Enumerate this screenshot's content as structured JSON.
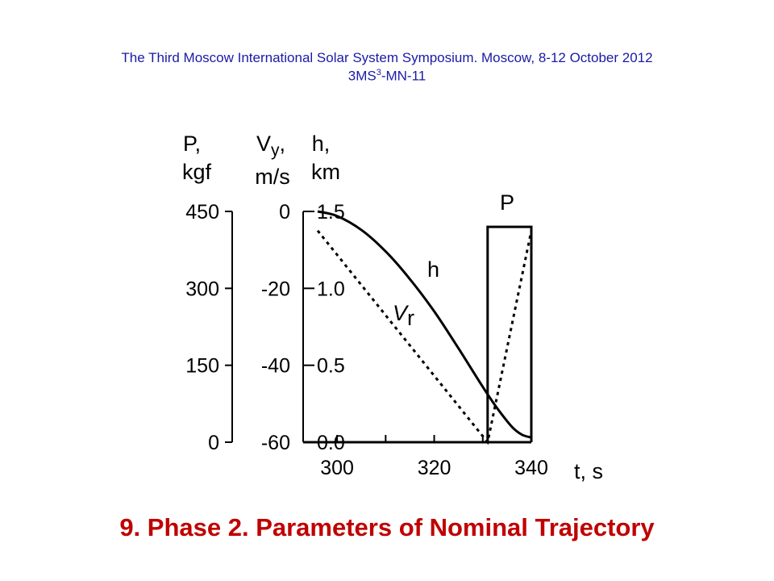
{
  "header": {
    "line1": "The Third  Moscow International Solar System Symposium. Moscow, 8-12 October 2012",
    "line2_prefix": "3MS",
    "line2_sup": "3",
    "line2_suffix": "-MN-11",
    "color": "#1a1aa6"
  },
  "footer": {
    "title": "9. Phase 2. Parameters of Nominal Trajectory",
    "color": "#c00000"
  },
  "chart_data": {
    "type": "line",
    "axes": {
      "x": {
        "label": "t, s",
        "ticks": [
          "300",
          "320",
          "340"
        ],
        "range": [
          295,
          340
        ]
      },
      "P": {
        "label_line1": "P,",
        "label_line2": "kgf",
        "ticks": [
          "450",
          "300",
          "150",
          "0"
        ],
        "range": [
          0,
          450
        ]
      },
      "Vy": {
        "label_main": "V",
        "label_sub": "y",
        "label_comma": ",",
        "label_line2": "m/s",
        "ticks": [
          "0",
          "-20",
          "-40",
          "-60"
        ],
        "range": [
          -60,
          0
        ]
      },
      "h": {
        "label_line1": "h,",
        "label_line2": "km",
        "ticks": [
          "1.5",
          "1.0",
          "0.5",
          "0.0"
        ],
        "range": [
          0,
          1.5
        ]
      }
    },
    "series": [
      {
        "name": "h",
        "axis": "h",
        "style": "solid",
        "x": [
          296,
          300,
          305,
          310,
          315,
          320,
          325,
          330,
          333,
          336,
          338,
          340
        ],
        "y": [
          1.5,
          1.47,
          1.38,
          1.24,
          1.06,
          0.85,
          0.61,
          0.36,
          0.22,
          0.1,
          0.05,
          0.03
        ]
      },
      {
        "name": "V",
        "name_sub": "r",
        "axis": "Vy",
        "style": "dotted",
        "x": [
          296,
          331,
          340
        ],
        "y": [
          -5,
          -60,
          -5
        ]
      },
      {
        "name": "P",
        "axis": "P",
        "style": "solid",
        "x": [
          331,
          331,
          340,
          340
        ],
        "y": [
          0,
          420,
          420,
          0
        ]
      }
    ]
  }
}
